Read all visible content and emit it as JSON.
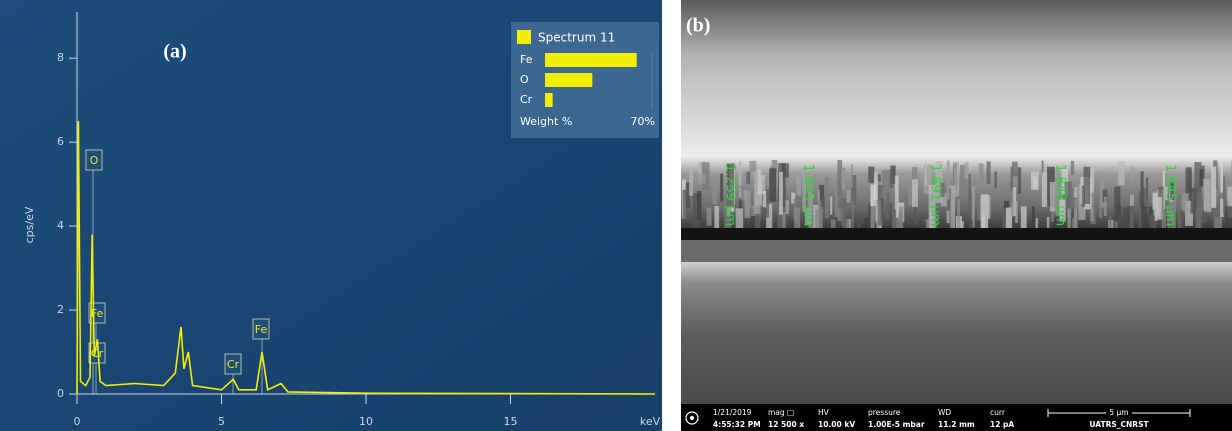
{
  "chart_data": [
    {
      "type": "line",
      "panel_label": "(a)",
      "y_label": "cps/eV",
      "x_label": "keV",
      "x": [
        0,
        0.05,
        0.12,
        0.3,
        0.45,
        0.525,
        0.6,
        0.705,
        0.8,
        1.0,
        2.0,
        3.0,
        3.4,
        3.6,
        3.7,
        3.85,
        4.0,
        5.0,
        5.41,
        5.6,
        6.2,
        6.4,
        6.6,
        7.06,
        7.3,
        10.0,
        20.0
      ],
      "values": [
        0.0,
        6.5,
        0.3,
        0.2,
        0.4,
        3.8,
        0.9,
        1.3,
        0.3,
        0.2,
        0.25,
        0.2,
        0.5,
        1.6,
        0.6,
        1.0,
        0.2,
        0.1,
        0.35,
        0.1,
        0.1,
        1.0,
        0.1,
        0.25,
        0.05,
        0.02,
        0.0
      ],
      "color": "#f2ee00",
      "xlim": [
        0,
        20
      ],
      "xticks": [
        0,
        5,
        10,
        15
      ],
      "ylim": [
        0,
        9.1
      ],
      "yticks": [
        0,
        2,
        4,
        6,
        8
      ],
      "annotations": [
        "O",
        "Fe",
        "Cr",
        "Cr",
        "Fe"
      ]
    },
    {
      "type": "hbar",
      "title": "Spectrum 11",
      "categories": [
        "Fe",
        "O",
        "Cr"
      ],
      "values": [
        60,
        31,
        5
      ],
      "color": "#f2ee00",
      "x_label": "Weight %",
      "xlim": [
        0,
        70
      ],
      "xticks": [
        {
          "value": 70,
          "label": "70%"
        }
      ]
    }
  ],
  "image": {
    "panel_label": "(b)",
    "measurements": [
      "1.259 µm",
      "1.845 µm",
      "1.891 µm",
      "1.848 µm",
      "1.845 µm"
    ],
    "status_bar": [
      {
        "label": "1/21/2019",
        "value": "4:55:32 PM"
      },
      {
        "label": "mag □",
        "value": "12 500 x"
      },
      {
        "label": "HV",
        "value": "10.00 kV"
      },
      {
        "label": "pressure",
        "value": "1.00E-5 mbar"
      },
      {
        "label": "WD",
        "value": "11.2 mm"
      },
      {
        "label": "curr",
        "value": "12 pA"
      },
      {
        "label": "5 µm",
        "value": "UATRS_CNRST"
      }
    ]
  }
}
